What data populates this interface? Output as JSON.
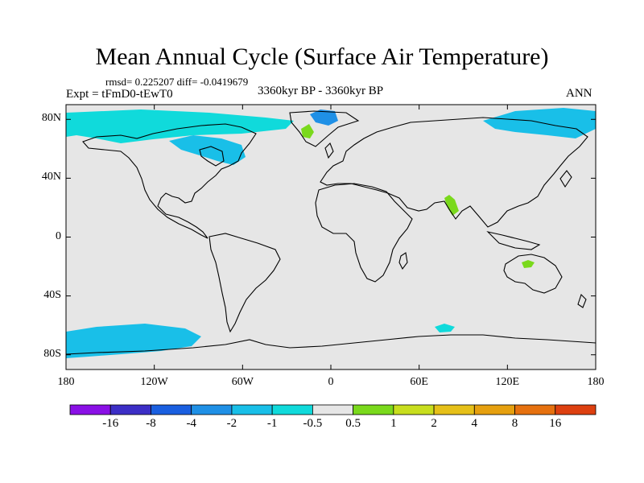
{
  "title": "Mean Annual Cycle (Surface Air Temperature)",
  "stats": "rmsd= 0.225207  diff= -0.0419679",
  "experiment": "Expt = tFmD0-tEwT0",
  "period": "3360kyr BP - 3360kyr BP",
  "season": "ANN",
  "axes": {
    "lat_labels": [
      {
        "value": 80,
        "label": "80N"
      },
      {
        "value": 40,
        "label": "40N"
      },
      {
        "value": 0,
        "label": "0"
      },
      {
        "value": -40,
        "label": "40S"
      },
      {
        "value": -80,
        "label": "80S"
      }
    ],
    "lon_labels": [
      {
        "value": -180,
        "label": "180"
      },
      {
        "value": -120,
        "label": "120W"
      },
      {
        "value": -60,
        "label": "60W"
      },
      {
        "value": 0,
        "label": "0"
      },
      {
        "value": 60,
        "label": "60E"
      },
      {
        "value": 120,
        "label": "120E"
      },
      {
        "value": 180,
        "label": "180"
      }
    ]
  },
  "colorbar": {
    "colors": [
      "#8a10e6",
      "#3c2ec6",
      "#1a5fe0",
      "#1f90e6",
      "#19bfe8",
      "#10dadb",
      "#e6e6e6",
      "#7ad91c",
      "#c8de1e",
      "#e6c019",
      "#e6a00f",
      "#e6710f",
      "#dd4010"
    ],
    "labels": [
      "-16",
      "-8",
      "-4",
      "-2",
      "-1",
      "-0.5",
      "0.5",
      "1",
      "2",
      "4",
      "8",
      "16"
    ]
  },
  "map": {
    "background_color": "#e6e6e6",
    "coast_color": "#000000",
    "anomaly_regions": [
      {
        "name": "north-america-cool",
        "color": "#10dadb",
        "lon": -165,
        "lat": 80
      },
      {
        "name": "hudson-cool",
        "color": "#19bfe8",
        "lon": -85,
        "lat": 60
      },
      {
        "name": "arctic-ocean-cool",
        "color": "#19bfe8",
        "lon": 140,
        "lat": 85
      },
      {
        "name": "greenland-cool",
        "color": "#1f90e6",
        "lon": -10,
        "lat": 83
      },
      {
        "name": "greenland-warm",
        "color": "#7ad91c",
        "lon": -20,
        "lat": 75
      },
      {
        "name": "india-warm",
        "color": "#7ad91c",
        "lon": 78,
        "lat": 22
      },
      {
        "name": "australia-warm",
        "color": "#7ad91c",
        "lon": 133,
        "lat": -21
      },
      {
        "name": "south-pacific-cool",
        "color": "#19bfe8",
        "lon": -150,
        "lat": -70
      },
      {
        "name": "weddell-cool",
        "color": "#10dadb",
        "lon": 75,
        "lat": -65
      }
    ]
  }
}
